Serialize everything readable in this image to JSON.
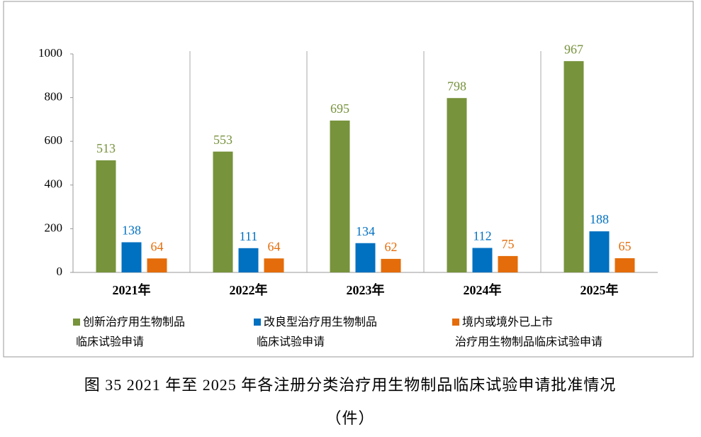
{
  "figure_caption": "图 35   2021 年至 2025 年各注册分类治疗用生物制品临床试验申请批准情况",
  "unit_label": "（件）",
  "chart_data": {
    "type": "bar",
    "categories": [
      "2021年",
      "2022年",
      "2023年",
      "2024年",
      "2025年"
    ],
    "series": [
      {
        "name": "创新治疗用生物制品\n临床试验申请",
        "color": "#77933c",
        "label_color": "#76923c",
        "values": [
          513,
          553,
          695,
          798,
          967
        ]
      },
      {
        "name": "改良型治疗用生物制品\n临床试验申请",
        "color": "#0070c0",
        "label_color": "#0070c0",
        "values": [
          138,
          111,
          134,
          112,
          188
        ]
      },
      {
        "name": "境内或境外已上市\n治疗用生物制品临床试验申请",
        "color": "#e46c0a",
        "label_color": "#e46c0a",
        "values": [
          64,
          64,
          62,
          75,
          65
        ]
      }
    ],
    "ylim": [
      0,
      1000
    ],
    "yticks": [
      0,
      200,
      400,
      600,
      800,
      1000
    ],
    "category_separators": true,
    "legend": "bottom"
  }
}
